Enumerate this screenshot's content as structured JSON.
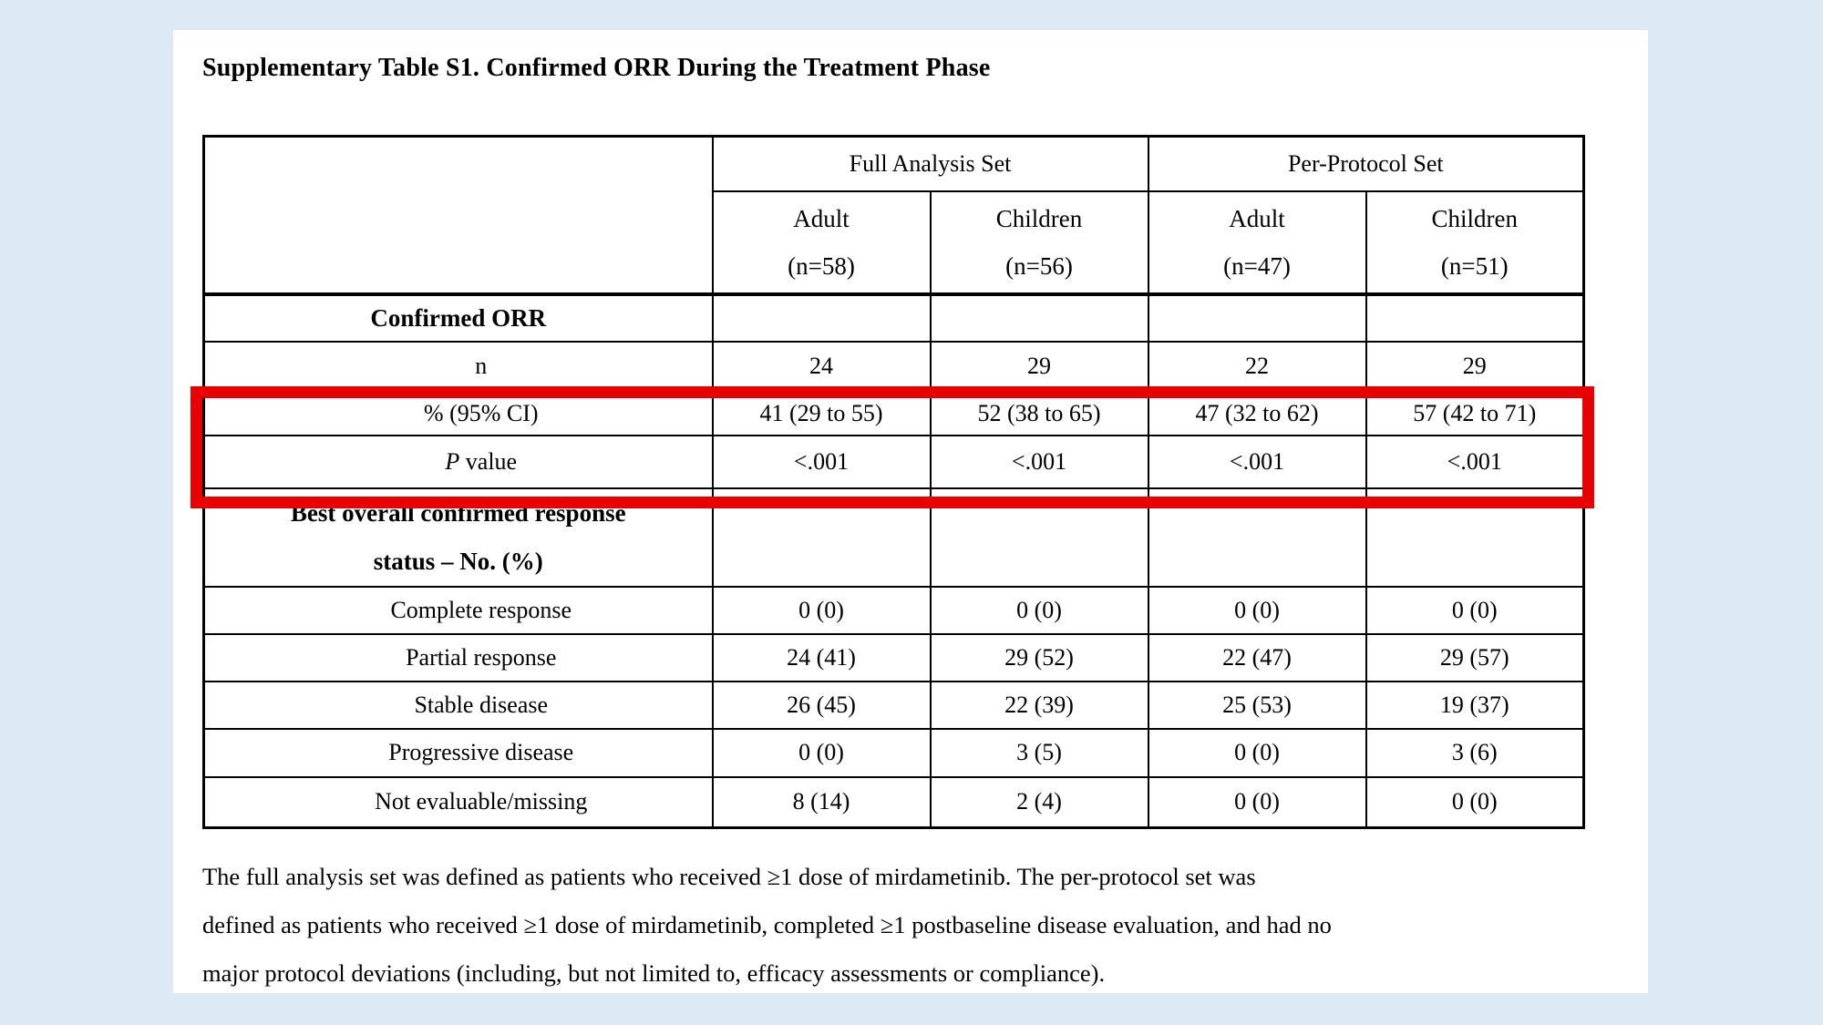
{
  "page": {
    "title": "Supplementary Table S1. Confirmed ORR During the Treatment Phase"
  },
  "table": {
    "group_headers": [
      "Full Analysis Set",
      "Per-Protocol Set"
    ],
    "columns": [
      {
        "label": "Adult",
        "n": "(n=58)"
      },
      {
        "label": "Children",
        "n": "(n=56)"
      },
      {
        "label": "Adult",
        "n": "(n=47)"
      },
      {
        "label": "Children",
        "n": "(n=51)"
      }
    ],
    "rows": [
      {
        "label": "Confirmed ORR",
        "type": "section",
        "cells": [
          "",
          "",
          "",
          ""
        ]
      },
      {
        "label": "n",
        "type": "sub",
        "cells": [
          "24",
          "29",
          "22",
          "29"
        ]
      },
      {
        "label": "% (95% CI)",
        "type": "sub",
        "cells": [
          "41 (29 to 55)",
          "52 (38 to 65)",
          "47 (32 to 62)",
          "57 (42 to 71)"
        ]
      },
      {
        "label_italic": "P",
        "label_rest": " value",
        "type": "sub",
        "cells": [
          "<.001",
          "<.001",
          "<.001",
          "<.001"
        ]
      },
      {
        "label_line1": "Best overall confirmed response",
        "label_line2": "status – No. (%)",
        "type": "section",
        "cells": [
          "",
          "",
          "",
          ""
        ]
      },
      {
        "label": "Complete response",
        "type": "sub",
        "cells": [
          "0 (0)",
          "0 (0)",
          "0 (0)",
          "0 (0)"
        ]
      },
      {
        "label": "Partial response",
        "type": "sub",
        "cells": [
          "24 (41)",
          "29 (52)",
          "22 (47)",
          "29 (57)"
        ]
      },
      {
        "label": "Stable disease",
        "type": "sub",
        "cells": [
          "26 (45)",
          "22 (39)",
          "25 (53)",
          "19 (37)"
        ]
      },
      {
        "label": "Progressive disease",
        "type": "sub",
        "cells": [
          "0 (0)",
          "3 (5)",
          "0 (0)",
          "3 (6)"
        ]
      },
      {
        "label": "Not evaluable/missing",
        "type": "sub",
        "cells": [
          "8 (14)",
          "2 (4)",
          "0 (0)",
          "0 (0)"
        ]
      }
    ]
  },
  "highlight": {
    "color": "#e90000",
    "rows_highlighted": [
      "% (95% CI)",
      "P value"
    ]
  },
  "footnote": {
    "lines": [
      "The full analysis set was defined as patients who received ≥1 dose of mirdametinib. The per-protocol set was",
      "defined as patients who received ≥1 dose of mirdametinib, completed ≥1 postbaseline disease evaluation, and had no",
      "major protocol deviations (including, but not limited to, efficacy assessments or compliance)."
    ]
  }
}
